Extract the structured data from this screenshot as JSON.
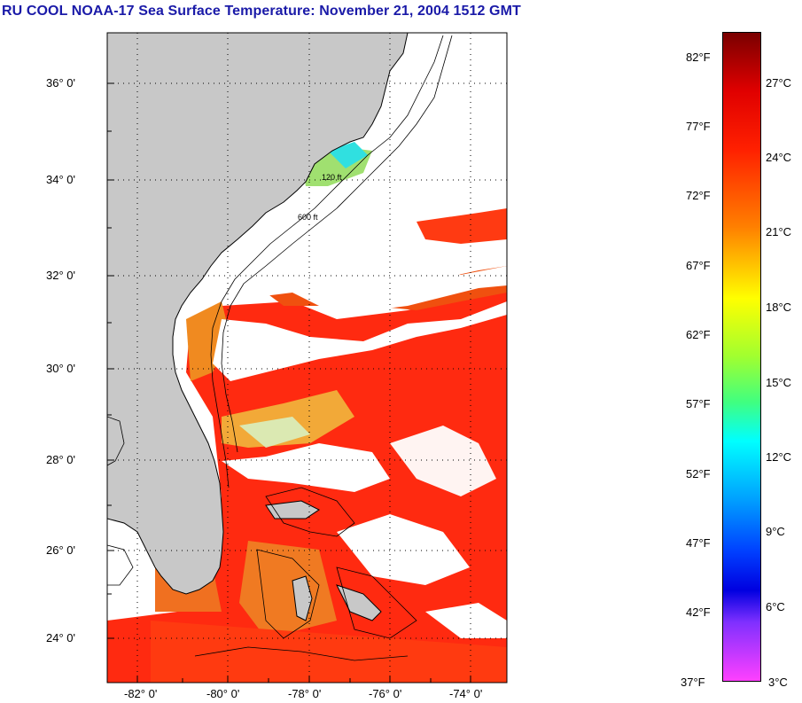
{
  "title": "RU COOL  NOAA-17  Sea Surface Temperature:  November 21, 2004 1512 GMT",
  "lat_labels": [
    "36° 0'",
    "34° 0'",
    "32° 0'",
    "30° 0'",
    "28° 0'",
    "26° 0'",
    "24° 0'"
  ],
  "lon_labels": [
    "-82° 0'",
    "-80° 0'",
    "-78° 0'",
    "-76° 0'",
    "-74° 0'"
  ],
  "colorbar": {
    "fahrenheit": [
      "82°F",
      "77°F",
      "72°F",
      "67°F",
      "62°F",
      "57°F",
      "52°F",
      "47°F",
      "42°F",
      "37°F"
    ],
    "celsius": [
      "27°C",
      "24°C",
      "21°C",
      "18°C",
      "15°C",
      "12°C",
      "9°C",
      "6°C",
      "3°C"
    ],
    "colors_top_to_bottom": [
      "#7a0000",
      "#ff0000",
      "#ff8000",
      "#ffff00",
      "#80ff40",
      "#00ffff",
      "#0080ff",
      "#0000ff",
      "#8000ff",
      "#ff40ff"
    ]
  },
  "contour_labels": [
    "120 ft",
    "600 ft"
  ],
  "colors": {
    "title": "#1a1aa8",
    "land": "#c8c8c8",
    "cloud": "#ffffff",
    "sst_warm": "#ff2a10",
    "sst_mid": "#f05a1a"
  }
}
